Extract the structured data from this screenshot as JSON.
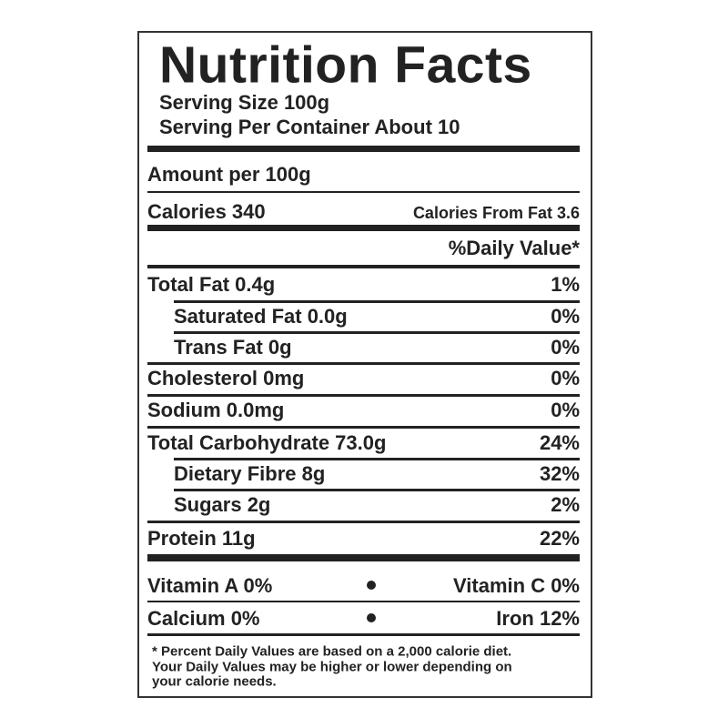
{
  "header": {
    "title": "Nutrition Facts",
    "serving_size": "Serving Size 100g",
    "servings_per_container": "Serving Per Container About 10"
  },
  "amount_per": "Amount per 100g",
  "calories": {
    "label": "Calories 340",
    "from_fat": "Calories From Fat 3.6"
  },
  "daily_value_header": "%Daily Value*",
  "nutrients": [
    {
      "label": "Total Fat 0.4g",
      "percent": "1%",
      "indent": false
    },
    {
      "label": "Saturated Fat 0.0g",
      "percent": "0%",
      "indent": true
    },
    {
      "label": "Trans Fat 0g",
      "percent": "0%",
      "indent": true
    },
    {
      "label": "Cholesterol 0mg",
      "percent": "0%",
      "indent": false
    },
    {
      "label": "Sodium 0.0mg",
      "percent": "0%",
      "indent": false
    },
    {
      "label": "Total Carbohydrate 73.0g",
      "percent": "24%",
      "indent": false
    },
    {
      "label": "Dietary Fibre 8g",
      "percent": "32%",
      "indent": true
    },
    {
      "label": "Sugars 2g",
      "percent": "2%",
      "indent": true
    },
    {
      "label": "Protein 11g",
      "percent": "22%",
      "indent": false
    }
  ],
  "vitamins": [
    [
      "Vitamin A 0%",
      "Vitamin C 0%"
    ],
    [
      "Calcium 0%",
      "Iron 12%"
    ]
  ],
  "footnote": [
    "* Percent Daily Values are based on a 2,000 calorie diet.",
    "Your Daily Values may be higher or lower depending on",
    "your calorie needs."
  ]
}
